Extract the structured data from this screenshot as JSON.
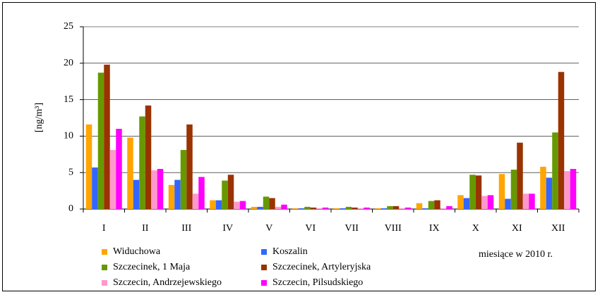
{
  "chart_data": {
    "type": "bar",
    "categories": [
      "I",
      "II",
      "III",
      "IV",
      "V",
      "VI",
      "VII",
      "VIII",
      "IX",
      "X",
      "XI",
      "XII"
    ],
    "series": [
      {
        "name": "Widuchowa",
        "color": "#ffa500",
        "values": [
          11.6,
          9.8,
          3.3,
          1.2,
          0.3,
          0.1,
          0.1,
          0.1,
          0.8,
          1.9,
          4.8,
          5.8
        ]
      },
      {
        "name": "Koszalin",
        "color": "#3366ff",
        "values": [
          5.7,
          4.0,
          4.0,
          1.2,
          0.3,
          0.1,
          0.1,
          0.1,
          0.1,
          1.5,
          1.4,
          4.3
        ]
      },
      {
        "name": "Szczecinek, 1 Maja",
        "color": "#669900",
        "values": [
          18.7,
          12.7,
          8.1,
          3.9,
          1.7,
          0.3,
          0.3,
          0.4,
          1.1,
          4.7,
          5.4,
          10.5
        ]
      },
      {
        "name": "Szczecinek, Artyleryjska",
        "color": "#993300",
        "values": [
          19.8,
          14.2,
          11.6,
          4.7,
          1.5,
          0.2,
          0.2,
          0.4,
          1.2,
          4.6,
          9.1,
          18.8
        ]
      },
      {
        "name": "Szczecin, Andrzejewskiego",
        "color": "#ff99cc",
        "values": [
          8.1,
          5.3,
          2.1,
          1.0,
          0.3,
          0.1,
          0.1,
          0.1,
          0.1,
          1.8,
          2.1,
          5.2
        ]
      },
      {
        "name": "Szczecin, Pilsudskiego",
        "color": "#ff00ff",
        "values": [
          11.0,
          5.5,
          4.4,
          1.1,
          0.6,
          0.2,
          0.2,
          0.2,
          0.4,
          1.9,
          2.1,
          5.5
        ]
      }
    ],
    "y_axis_label": "[ng/m³]",
    "x_axis_label": "miesiące w 2010 r.",
    "ylim": [
      0,
      25
    ],
    "yticks": [
      0,
      5,
      10,
      15,
      20,
      25
    ],
    "grid": true,
    "legend": "bottom"
  }
}
